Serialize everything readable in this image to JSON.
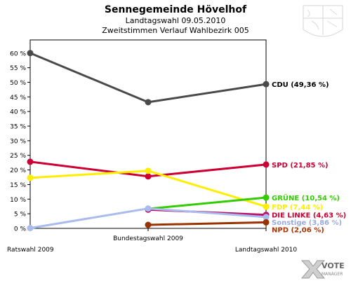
{
  "header": {
    "title": "Sennegemeinde Hövelhof",
    "subtitle1": "Landtagswahl 09.05.2010",
    "subtitle2": "Zweitstimmen Verlauf Wahlbezirk 005"
  },
  "logo": {
    "text_vote": "VOTE",
    "text_manager": "MANAGER"
  },
  "chart_data": {
    "type": "line",
    "title": "Sennegemeinde Hövelhof",
    "subtitle": "Landtagswahl 09.05.2010 — Zweitstimmen Verlauf Wahlbezirk 005",
    "categories": [
      "Ratswahl 2009",
      "Bundestagswahl 2009",
      "Landtagswahl 2010"
    ],
    "ylim": [
      0,
      60
    ],
    "yticks": [
      0,
      5,
      10,
      15,
      20,
      25,
      30,
      35,
      40,
      45,
      50,
      55,
      60
    ],
    "ytick_labels": [
      "0 %",
      "5 %",
      "10 %",
      "15 %",
      "20 %",
      "25 %",
      "30 %",
      "35 %",
      "40 %",
      "45 %",
      "50 %",
      "55 %",
      "60 %"
    ],
    "grid": false,
    "legend": "right-of-plot labels",
    "series": [
      {
        "name": "CDU",
        "color": "#4a4a4a",
        "values": [
          60.0,
          43.2,
          49.36
        ],
        "end_label": "CDU (49,36 %)",
        "label_color": "#000000"
      },
      {
        "name": "SPD",
        "color": "#cc0033",
        "values": [
          22.8,
          17.8,
          21.85
        ],
        "end_label": "SPD (21,85 %)",
        "label_color": "#cc0033"
      },
      {
        "name": "FDP",
        "color": "#ffee00",
        "values": [
          17.3,
          19.7,
          7.44
        ],
        "end_label": "FDP (7,44 %)",
        "label_color": "#ffee00"
      },
      {
        "name": "GRÜNE",
        "color": "#33cc00",
        "values": [
          null,
          6.7,
          10.54
        ],
        "end_label": "GRÜNE (10,54 %)",
        "label_color": "#33cc00"
      },
      {
        "name": "DIE LINKE",
        "color": "#bb1166",
        "values": [
          null,
          6.4,
          4.63
        ],
        "end_label": "DIE LINKE (4,63 %)",
        "label_color": "#cc0033"
      },
      {
        "name": "Sonstige",
        "color": "#aabbee",
        "values": [
          0.1,
          6.8,
          3.86
        ],
        "end_label": "Sonstige (3,86 %)",
        "label_color": "#99aadd"
      },
      {
        "name": "NPD",
        "color": "#993300",
        "values": [
          null,
          1.2,
          2.06
        ],
        "end_label": "NPD (2,06 %)",
        "label_color": "#aa3300"
      }
    ]
  }
}
